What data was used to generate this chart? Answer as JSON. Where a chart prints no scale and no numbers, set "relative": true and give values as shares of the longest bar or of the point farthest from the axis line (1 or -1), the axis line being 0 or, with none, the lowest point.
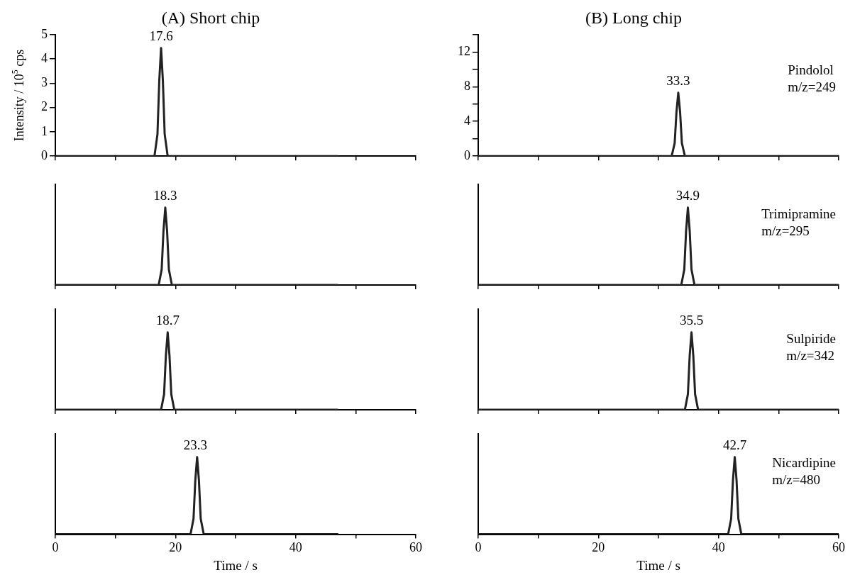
{
  "chart_data": [
    {
      "type": "line",
      "title": "(A) Short chip",
      "ylabel": "Intensity / 10$^{5}$ cps",
      "x": [
        0,
        16.5,
        17.0,
        17.3,
        17.6,
        17.9,
        18.2,
        18.7,
        47
      ],
      "series": [
        {
          "color": "#222222",
          "values": [
            0,
            0,
            0.9,
            3.1,
            4.45,
            3.1,
            0.9,
            0,
            0
          ]
        }
      ],
      "xlim": [
        0,
        60
      ],
      "xticks": [
        0,
        {
          "value": 10,
          "label": null
        },
        {
          "value": 20,
          "label": null
        },
        {
          "value": 30,
          "label": null
        },
        {
          "value": 40,
          "label": null
        },
        {
          "value": 50,
          "label": null
        },
        {
          "value": 60,
          "label": null
        }
      ],
      "ylim": [
        0,
        5
      ],
      "yticks": [
        0,
        1,
        2,
        3,
        4,
        5
      ],
      "tick_labels": "y",
      "grid": false,
      "legend": false,
      "marker": "none",
      "line_style": "solid",
      "annotations": [
        {
          "text": "17.6",
          "x": 17.6,
          "y": 4.45
        }
      ]
    },
    {
      "type": "line",
      "title": "(B) Long chip",
      "x": [
        0,
        32.2,
        32.7,
        33.0,
        33.3,
        33.6,
        33.9,
        34.4,
        60
      ],
      "series": [
        {
          "color": "#222222",
          "values": [
            0,
            0,
            1.5,
            5.1,
            7.3,
            5.1,
            1.5,
            0,
            0
          ]
        }
      ],
      "xlim": [
        0,
        60
      ],
      "xticks": [
        0,
        {
          "value": 10,
          "label": null
        },
        {
          "value": 20,
          "label": null
        },
        {
          "value": 30,
          "label": null
        },
        {
          "value": 40,
          "label": null
        },
        {
          "value": 50,
          "label": null
        },
        {
          "value": 60,
          "label": null
        }
      ],
      "ylim": [
        0,
        14
      ],
      "yticks": [
        0,
        {
          "value": 2,
          "label": null
        },
        4,
        {
          "value": 6,
          "label": null
        },
        8,
        {
          "value": 10,
          "label": null
        },
        12,
        {
          "value": 14,
          "label": null
        }
      ],
      "tick_labels": "y",
      "grid": false,
      "legend": false,
      "marker": "none",
      "line_style": "solid",
      "annotations": [
        {
          "text": "33.3",
          "x": 33.3,
          "y": 7.3
        },
        "Pindolol\nm/z=249"
      ]
    },
    {
      "type": "line",
      "relative": true,
      "x": [
        0,
        17.2,
        17.7,
        18.0,
        18.3,
        18.6,
        18.9,
        19.4,
        47
      ],
      "series": [
        {
          "color": "#222222",
          "values": [
            0,
            0,
            0.2,
            0.7,
            1,
            0.7,
            0.2,
            0,
            0
          ]
        }
      ],
      "xlim": [
        0,
        60
      ],
      "xticks": [
        0,
        {
          "value": 10,
          "label": null
        },
        {
          "value": 20,
          "label": null
        },
        {
          "value": 30,
          "label": null
        },
        {
          "value": 40,
          "label": null
        },
        {
          "value": 50,
          "label": null
        },
        {
          "value": 60,
          "label": null
        }
      ],
      "tick_labels": false,
      "grid": false,
      "legend": false,
      "marker": "none",
      "line_style": "solid",
      "annotations": [
        {
          "text": "18.3",
          "x": 18.3,
          "y": 1
        }
      ]
    },
    {
      "type": "line",
      "relative": true,
      "x": [
        0,
        33.8,
        34.3,
        34.6,
        34.9,
        35.2,
        35.5,
        36.0,
        60
      ],
      "series": [
        {
          "color": "#222222",
          "values": [
            0,
            0,
            0.2,
            0.7,
            1,
            0.7,
            0.2,
            0,
            0
          ]
        }
      ],
      "xlim": [
        0,
        60
      ],
      "xticks": [
        0,
        {
          "value": 10,
          "label": null
        },
        {
          "value": 20,
          "label": null
        },
        {
          "value": 30,
          "label": null
        },
        {
          "value": 40,
          "label": null
        },
        {
          "value": 50,
          "label": null
        },
        {
          "value": 60,
          "label": null
        }
      ],
      "tick_labels": false,
      "grid": false,
      "legend": false,
      "marker": "none",
      "line_style": "solid",
      "annotations": [
        {
          "text": "34.9",
          "x": 34.9,
          "y": 1
        },
        "Trimipramine\nm/z=295"
      ]
    },
    {
      "type": "line",
      "relative": true,
      "x": [
        0,
        17.6,
        18.1,
        18.4,
        18.7,
        19.0,
        19.3,
        19.8,
        47
      ],
      "series": [
        {
          "color": "#222222",
          "values": [
            0,
            0,
            0.2,
            0.7,
            1,
            0.7,
            0.2,
            0,
            0
          ]
        }
      ],
      "xlim": [
        0,
        60
      ],
      "xticks": [
        0,
        {
          "value": 10,
          "label": null
        },
        {
          "value": 20,
          "label": null
        },
        {
          "value": 30,
          "label": null
        },
        {
          "value": 40,
          "label": null
        },
        {
          "value": 50,
          "label": null
        },
        {
          "value": 60,
          "label": null
        }
      ],
      "tick_labels": false,
      "grid": false,
      "legend": false,
      "marker": "none",
      "line_style": "solid",
      "annotations": [
        {
          "text": "18.7",
          "x": 18.7,
          "y": 1
        }
      ]
    },
    {
      "type": "line",
      "relative": true,
      "x": [
        0,
        34.4,
        34.9,
        35.2,
        35.5,
        35.8,
        36.1,
        36.6,
        60
      ],
      "series": [
        {
          "color": "#222222",
          "values": [
            0,
            0,
            0.2,
            0.7,
            1,
            0.7,
            0.2,
            0,
            0
          ]
        }
      ],
      "xlim": [
        0,
        60
      ],
      "xticks": [
        0,
        {
          "value": 10,
          "label": null
        },
        {
          "value": 20,
          "label": null
        },
        {
          "value": 30,
          "label": null
        },
        {
          "value": 40,
          "label": null
        },
        {
          "value": 50,
          "label": null
        },
        {
          "value": 60,
          "label": null
        }
      ],
      "tick_labels": false,
      "grid": false,
      "legend": false,
      "marker": "none",
      "line_style": "solid",
      "annotations": [
        {
          "text": "35.5",
          "x": 35.5,
          "y": 1
        },
        "Sulpiride\nm/z=342"
      ]
    },
    {
      "type": "line",
      "relative": true,
      "x": [
        0,
        22.5,
        23.0,
        23.3,
        23.6,
        23.9,
        24.2,
        24.7,
        47
      ],
      "series": [
        {
          "color": "#222222",
          "values": [
            0,
            0,
            0.2,
            0.7,
            1,
            0.7,
            0.2,
            0,
            0
          ]
        }
      ],
      "xlim": [
        0,
        60
      ],
      "xticks": [
        0,
        {
          "value": 10,
          "label": null
        },
        20,
        {
          "value": 30,
          "label": null
        },
        40,
        {
          "value": 50,
          "label": null
        },
        60
      ],
      "xlabel": "Time / s",
      "tick_labels": "x",
      "grid": false,
      "legend": false,
      "marker": "none",
      "line_style": "solid",
      "annotations": [
        {
          "text": "23.3",
          "x": 23.3,
          "y": 1
        }
      ]
    },
    {
      "type": "line",
      "relative": true,
      "x": [
        0,
        41.6,
        42.1,
        42.4,
        42.7,
        43.0,
        43.3,
        43.8,
        60
      ],
      "series": [
        {
          "color": "#222222",
          "values": [
            0,
            0,
            0.2,
            0.7,
            1,
            0.7,
            0.2,
            0,
            0
          ]
        }
      ],
      "xlim": [
        0,
        60
      ],
      "xticks": [
        0,
        {
          "value": 10,
          "label": null
        },
        20,
        {
          "value": 30,
          "label": null
        },
        40,
        {
          "value": 50,
          "label": null
        },
        60
      ],
      "xlabel": "Time / s",
      "tick_labels": "x",
      "grid": false,
      "legend": false,
      "marker": "none",
      "line_style": "solid",
      "annotations": [
        {
          "text": "42.7",
          "x": 42.7,
          "y": 1
        },
        "Nicardipine\nm/z=480"
      ]
    }
  ]
}
